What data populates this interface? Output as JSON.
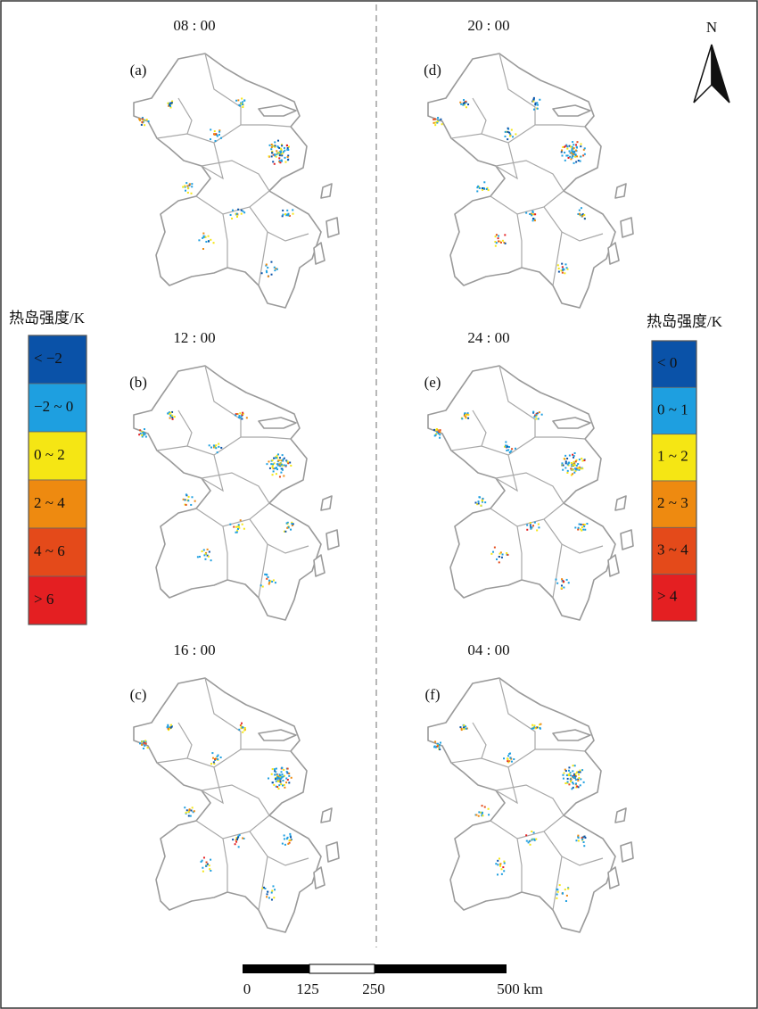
{
  "panels": [
    {
      "time": "08 : 00",
      "label": "(a)"
    },
    {
      "time": "12 : 00",
      "label": "(b)"
    },
    {
      "time": "16 : 00",
      "label": "(c)"
    },
    {
      "time": "20 : 00",
      "label": "(d)"
    },
    {
      "time": "24 : 00",
      "label": "(e)"
    },
    {
      "time": "04 : 00",
      "label": "(f)"
    }
  ],
  "legends": [
    {
      "title": "热岛强度/K",
      "items": [
        "< −2",
        "−2 ~ 0",
        "0 ~ 2",
        "2 ~ 4",
        "4 ~ 6",
        "> 6"
      ],
      "colors": [
        "#0a52a8",
        "#1e9fe0",
        "#f5e614",
        "#ee8a10",
        "#e44a1a",
        "#e41f22"
      ]
    },
    {
      "title": "热岛强度/K",
      "items": [
        "< 0",
        "0 ~ 1",
        "1 ~ 2",
        "2 ~ 3",
        "3 ~ 4",
        "> 4"
      ],
      "colors": [
        "#0a52a8",
        "#1e9fe0",
        "#f5e614",
        "#ee8a10",
        "#e44a1a",
        "#e41f22"
      ]
    }
  ],
  "north": "N",
  "scale_bar": {
    "labels": [
      "0",
      "125",
      "250",
      "500 km"
    ]
  }
}
